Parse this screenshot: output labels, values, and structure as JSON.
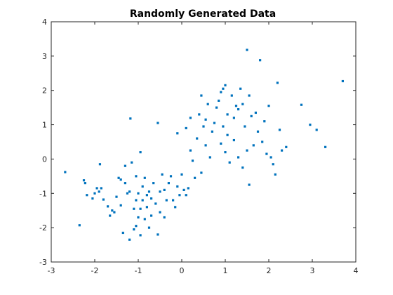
{
  "chart_data": {
    "type": "scatter",
    "title": "Randomly Generated Data",
    "xlabel": "",
    "ylabel": "",
    "xlim": [
      -3,
      4
    ],
    "ylim": [
      -3,
      4
    ],
    "xticks": [
      -3,
      -2,
      -1,
      0,
      1,
      2,
      3,
      4
    ],
    "yticks": [
      -3,
      -2,
      -1,
      0,
      1,
      2,
      3,
      4
    ],
    "grid": false,
    "marker_color": "#0072BD",
    "series": [
      {
        "points": [
          [
            -2.68,
            -0.38
          ],
          [
            -2.35,
            -1.93
          ],
          [
            -2.25,
            -0.62
          ],
          [
            -2.22,
            -0.7
          ],
          [
            -2.18,
            -1.05
          ],
          [
            -2.05,
            -1.15
          ],
          [
            -2.0,
            -1.0
          ],
          [
            -1.95,
            -0.85
          ],
          [
            -1.9,
            -0.95
          ],
          [
            -1.88,
            -0.15
          ],
          [
            -1.85,
            -0.85
          ],
          [
            -1.8,
            -1.18
          ],
          [
            -1.7,
            -1.38
          ],
          [
            -1.65,
            -1.65
          ],
          [
            -1.6,
            -1.5
          ],
          [
            -1.55,
            -1.55
          ],
          [
            -1.5,
            -1.1
          ],
          [
            -1.45,
            -0.55
          ],
          [
            -1.4,
            -1.35
          ],
          [
            -1.4,
            -0.6
          ],
          [
            -1.35,
            -2.15
          ],
          [
            -1.3,
            -0.7
          ],
          [
            -1.3,
            -0.2
          ],
          [
            -1.25,
            -1.0
          ],
          [
            -1.2,
            -0.95
          ],
          [
            -1.2,
            -2.35
          ],
          [
            -1.18,
            1.18
          ],
          [
            -1.15,
            -0.1
          ],
          [
            -1.1,
            -2.05
          ],
          [
            -1.1,
            -1.45
          ],
          [
            -1.05,
            -1.95
          ],
          [
            -1.05,
            -1.2
          ],
          [
            -1.05,
            -0.5
          ],
          [
            -1.0,
            -1.7
          ],
          [
            -1.0,
            -1.0
          ],
          [
            -0.95,
            -2.22
          ],
          [
            -0.95,
            -1.45
          ],
          [
            -0.95,
            0.2
          ],
          [
            -0.9,
            -0.8
          ],
          [
            -0.9,
            -1.2
          ],
          [
            -0.85,
            -1.75
          ],
          [
            -0.85,
            -0.55
          ],
          [
            -0.8,
            -1.05
          ],
          [
            -0.8,
            -1.4
          ],
          [
            -0.75,
            -2.0
          ],
          [
            -0.75,
            -0.95
          ],
          [
            -0.7,
            -1.15
          ],
          [
            -0.7,
            -1.65
          ],
          [
            -0.65,
            -0.7
          ],
          [
            -0.6,
            -1.3
          ],
          [
            -0.55,
            1.05
          ],
          [
            -0.55,
            -2.2
          ],
          [
            -0.5,
            -0.95
          ],
          [
            -0.5,
            -1.55
          ],
          [
            -0.45,
            -0.45
          ],
          [
            -0.4,
            -0.9
          ],
          [
            -0.4,
            -1.7
          ],
          [
            -0.35,
            -1.2
          ],
          [
            -0.3,
            -0.7
          ],
          [
            -0.25,
            -0.5
          ],
          [
            -0.2,
            -1.2
          ],
          [
            -0.15,
            -1.4
          ],
          [
            -0.1,
            0.75
          ],
          [
            -0.1,
            -0.8
          ],
          [
            -0.05,
            -1.05
          ],
          [
            0.0,
            -0.45
          ],
          [
            0.05,
            -0.9
          ],
          [
            0.1,
            0.9
          ],
          [
            0.1,
            -1.05
          ],
          [
            0.15,
            -0.85
          ],
          [
            0.2,
            1.2
          ],
          [
            0.2,
            0.25
          ],
          [
            0.25,
            -0.05
          ],
          [
            0.3,
            -0.55
          ],
          [
            0.35,
            0.6
          ],
          [
            0.4,
            1.3
          ],
          [
            0.45,
            1.85
          ],
          [
            0.45,
            -0.4
          ],
          [
            0.5,
            0.95
          ],
          [
            0.55,
            1.15
          ],
          [
            0.55,
            0.4
          ],
          [
            0.6,
            1.6
          ],
          [
            0.65,
            0.05
          ],
          [
            0.7,
            0.8
          ],
          [
            0.75,
            1.05
          ],
          [
            0.8,
            1.5
          ],
          [
            0.85,
            1.7
          ],
          [
            0.9,
            0.45
          ],
          [
            0.9,
            1.95
          ],
          [
            0.95,
            2.05
          ],
          [
            0.95,
            0.95
          ],
          [
            1.0,
            2.15
          ],
          [
            1.0,
            0.2
          ],
          [
            1.05,
            1.3
          ],
          [
            1.05,
            0.7
          ],
          [
            1.1,
            -0.1
          ],
          [
            1.15,
            1.85
          ],
          [
            1.2,
            1.2
          ],
          [
            1.2,
            0.55
          ],
          [
            1.25,
            1.55
          ],
          [
            1.3,
            1.45
          ],
          [
            1.3,
            0.05
          ],
          [
            1.35,
            2.05
          ],
          [
            1.4,
            1.6
          ],
          [
            1.4,
            -0.25
          ],
          [
            1.45,
            0.95
          ],
          [
            1.5,
            3.18
          ],
          [
            1.5,
            0.25
          ],
          [
            1.55,
            1.85
          ],
          [
            1.55,
            -0.75
          ],
          [
            1.6,
            1.25
          ],
          [
            1.65,
            0.4
          ],
          [
            1.7,
            1.35
          ],
          [
            1.75,
            0.8
          ],
          [
            1.8,
            2.88
          ],
          [
            1.85,
            0.5
          ],
          [
            1.9,
            1.1
          ],
          [
            1.95,
            0.15
          ],
          [
            2.0,
            1.55
          ],
          [
            2.05,
            0.05
          ],
          [
            2.1,
            -0.15
          ],
          [
            2.15,
            -0.45
          ],
          [
            2.2,
            2.22
          ],
          [
            2.25,
            0.85
          ],
          [
            2.3,
            0.25
          ],
          [
            2.4,
            0.35
          ],
          [
            2.75,
            1.58
          ],
          [
            2.95,
            1.0
          ],
          [
            3.1,
            0.85
          ],
          [
            3.3,
            0.35
          ],
          [
            3.7,
            2.27
          ]
        ]
      }
    ]
  }
}
